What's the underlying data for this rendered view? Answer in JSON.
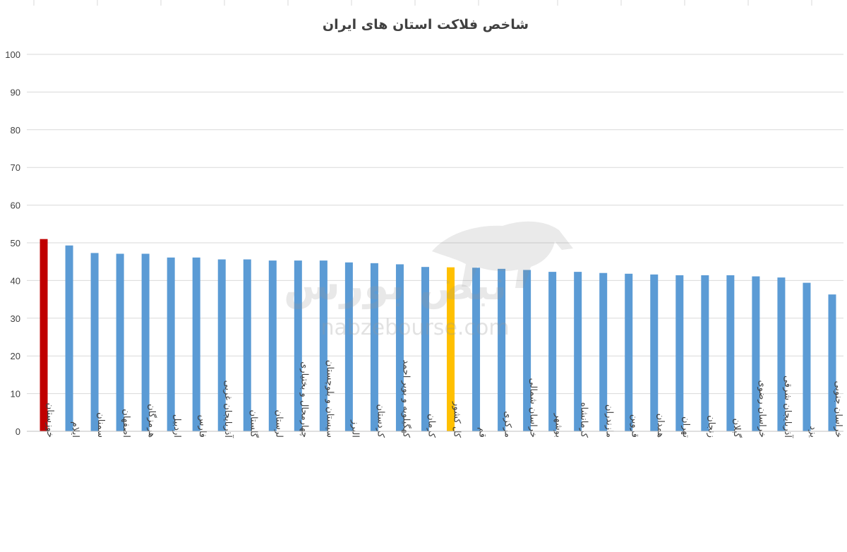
{
  "chart_data": {
    "type": "bar",
    "title": "شاخص فلاکت استان های ایران",
    "xlabel": "",
    "ylabel": "",
    "ylim": [
      0,
      100
    ],
    "yticks": [
      0,
      10,
      20,
      30,
      40,
      50,
      60,
      70,
      80,
      90,
      100
    ],
    "grid": true,
    "legend": "none",
    "categories": [
      "خوزستان",
      "ایلام",
      "سمنان",
      "اصفهان",
      "هرمزگان",
      "اردبیل",
      "فارس",
      "آذربایجان غربی",
      "گلستان",
      "لرستان",
      "چهارمحال و بختیاری",
      "سیستان و بلوچستان",
      "البرز",
      "کردستان",
      "کهگیلویه و بویر احمد",
      "کرمان",
      "کل کشور",
      "قم",
      "مرکزی",
      "خراسان شمالی",
      "بوشهر",
      "کرمانشاه",
      "مازندران",
      "قزوین",
      "همدان",
      "تهران",
      "زنجان",
      "گیلان",
      "خراسان رضوی",
      "آذربایجان شرقی",
      "یزد",
      "خراسان جنوبی"
    ],
    "values": [
      51.0,
      49.3,
      47.3,
      47.1,
      47.1,
      46.1,
      46.1,
      45.6,
      45.6,
      45.3,
      45.3,
      45.3,
      44.8,
      44.6,
      44.3,
      43.6,
      43.5,
      43.4,
      43.1,
      42.8,
      42.3,
      42.3,
      42.0,
      41.8,
      41.6,
      41.4,
      41.4,
      41.4,
      41.1,
      40.8,
      39.4,
      36.3
    ],
    "colors": {
      "default": "#5b9bd5",
      "highlight_top": "#c00000",
      "highlight_country": "#ffc000",
      "grid": "#d9d9d9",
      "axis": "#bfbfbf"
    },
    "highlights": {
      "0": "highlight_top",
      "16": "highlight_country"
    }
  },
  "watermark": {
    "text_fa": "نبض بورس",
    "text_en": "nabzebourse.com"
  }
}
